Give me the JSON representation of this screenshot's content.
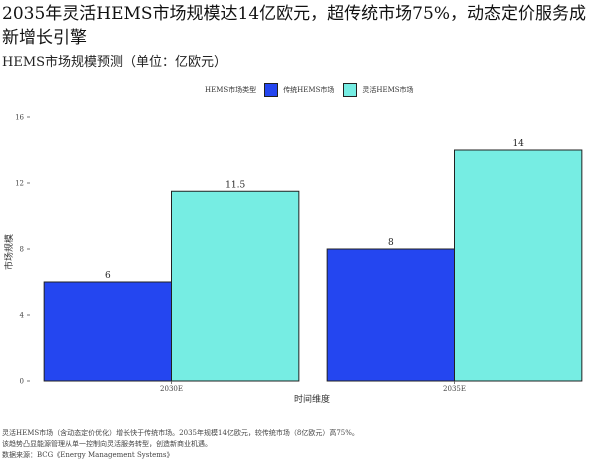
{
  "header": {
    "title": "2035年灵活HEMS市场规模达14亿欧元，超传统市场75%，动态定价服务成新增长引擎",
    "subtitle": "HEMS市场规模预测（单位：亿欧元）"
  },
  "legend": {
    "title": "HEMS市场类型",
    "items": [
      {
        "label": "传统HEMS市场",
        "color": "#2446F0"
      },
      {
        "label": "灵活HEMS市场",
        "color": "#76EDE3"
      }
    ]
  },
  "footer": {
    "line1": "灵活HEMS市场（含动态定价优化）增长快于传统市场。2035年规模14亿欧元，较传统市场（8亿欧元）高75%。",
    "line2": "该趋势凸显能源管理从单一控制向灵活服务转型，创造新商业机遇。",
    "line3": "数据来源：BCG《Energy Management Systems》"
  },
  "chart_data": {
    "type": "bar",
    "categories": [
      "2030E",
      "2035E"
    ],
    "series": [
      {
        "name": "传统HEMS市场",
        "values": [
          6,
          8
        ],
        "color": "#2446F0"
      },
      {
        "name": "灵活HEMS市场",
        "values": [
          11.5,
          14
        ],
        "color": "#76EDE3"
      }
    ],
    "value_labels": [
      [
        "6",
        "8"
      ],
      [
        "11.5",
        "14"
      ]
    ],
    "xlabel": "时间维度",
    "ylabel": "市场规模",
    "ylim": [
      0,
      16
    ],
    "yticks": [
      0,
      4,
      8,
      12,
      16
    ],
    "grid": false,
    "legend_position": "top"
  }
}
